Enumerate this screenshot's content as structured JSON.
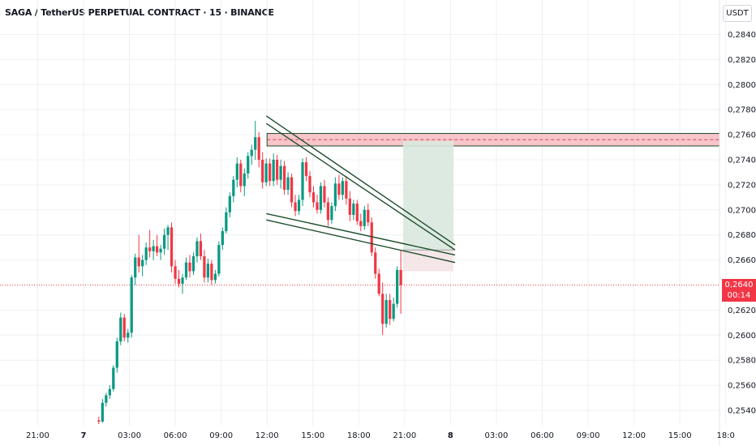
{
  "header": {
    "title": "SAGA / TetherUS PERPETUAL CONTRACT · 15 · BINANCE",
    "currency": "USDT"
  },
  "price_label": {
    "price": "0,2640",
    "countdown": "00:14"
  },
  "colors": {
    "up": "#089981",
    "down": "#f23645",
    "grid": "#eef0f3",
    "trendline": "#1e4d2b"
  },
  "chart_data": {
    "type": "candlestick",
    "title": "SAGA / TetherUS PERPETUAL CONTRACT · 15 · BINANCE",
    "ylim": [
      0.253,
      0.2862
    ],
    "y_ticks": [
      "0,2540",
      "0,2560",
      "0,2580",
      "0,2600",
      "0,2620",
      "0,2660",
      "0,2680",
      "0,2700",
      "0,2720",
      "0,2740",
      "0,2760",
      "0,2780",
      "0,2800",
      "0,2820",
      "0,2840"
    ],
    "y_tick_values": [
      0.254,
      0.256,
      0.258,
      0.26,
      0.262,
      0.266,
      0.268,
      0.27,
      0.272,
      0.274,
      0.276,
      0.278,
      0.28,
      0.282,
      0.284
    ],
    "x_ticks": [
      {
        "label": "21:00",
        "h": -3
      },
      {
        "label": "7",
        "h": 0,
        "bold": true
      },
      {
        "label": "03:00",
        "h": 3
      },
      {
        "label": "06:00",
        "h": 6
      },
      {
        "label": "09:00",
        "h": 9
      },
      {
        "label": "12:00",
        "h": 12
      },
      {
        "label": "15:00",
        "h": 15
      },
      {
        "label": "18:00",
        "h": 18
      },
      {
        "label": "21:00",
        "h": 21
      },
      {
        "label": "8",
        "h": 24,
        "bold": true
      },
      {
        "label": "03:00",
        "h": 27
      },
      {
        "label": "06:00",
        "h": 30
      },
      {
        "label": "09:00",
        "h": 33
      },
      {
        "label": "12:00",
        "h": 36
      },
      {
        "label": "15:00",
        "h": 39
      },
      {
        "label": "18:0",
        "h": 42
      }
    ],
    "current_price": 0.264,
    "resistance_zone": {
      "from_h": 12,
      "to_h": 42,
      "top": 0.2761,
      "bottom": 0.2751,
      "mid": 0.2756
    },
    "target_box": {
      "from_h": 20.9,
      "to_h": 24.2,
      "top": 0.2755,
      "entry": 0.2668,
      "stop": 0.2651
    },
    "trendlines": [
      {
        "from": [
          11.95,
          0.2775
        ],
        "to": [
          24.3,
          0.2672
        ]
      },
      {
        "from": [
          11.95,
          0.2769
        ],
        "to": [
          24.3,
          0.2668
        ]
      },
      {
        "from": [
          11.95,
          0.2697
        ],
        "to": [
          24.3,
          0.2664
        ]
      },
      {
        "from": [
          11.95,
          0.2692
        ],
        "to": [
          24.3,
          0.2658
        ]
      }
    ],
    "candles": [
      [
        0.2532,
        0.2535,
        0.2529,
        0.2531
      ],
      [
        0.2531,
        0.2549,
        0.253,
        0.2546
      ],
      [
        0.2546,
        0.2554,
        0.2543,
        0.2552
      ],
      [
        0.2552,
        0.256,
        0.2549,
        0.2557
      ],
      [
        0.2557,
        0.2576,
        0.2555,
        0.2574
      ],
      [
        0.2574,
        0.2598,
        0.257,
        0.2595
      ],
      [
        0.2595,
        0.2618,
        0.2592,
        0.2614
      ],
      [
        0.2614,
        0.2617,
        0.2595,
        0.2598
      ],
      [
        0.2598,
        0.2605,
        0.2594,
        0.2602
      ],
      [
        0.2602,
        0.2648,
        0.2598,
        0.2646
      ],
      [
        0.2646,
        0.2665,
        0.264,
        0.2662
      ],
      [
        0.2662,
        0.268,
        0.265,
        0.2655
      ],
      [
        0.2655,
        0.2664,
        0.2647,
        0.266
      ],
      [
        0.266,
        0.2674,
        0.2656,
        0.267
      ],
      [
        0.267,
        0.2684,
        0.2662,
        0.2667
      ],
      [
        0.2667,
        0.2676,
        0.266,
        0.2671
      ],
      [
        0.2671,
        0.268,
        0.2663,
        0.2666
      ],
      [
        0.2666,
        0.2672,
        0.266,
        0.2669
      ],
      [
        0.2669,
        0.2685,
        0.2664,
        0.268
      ],
      [
        0.268,
        0.2688,
        0.2668,
        0.2686
      ],
      [
        0.2686,
        0.269,
        0.265,
        0.2655
      ],
      [
        0.2655,
        0.266,
        0.2641,
        0.2645
      ],
      [
        0.2645,
        0.2652,
        0.2638,
        0.2641
      ],
      [
        0.2641,
        0.2649,
        0.2633,
        0.2646
      ],
      [
        0.2646,
        0.2662,
        0.2644,
        0.2658
      ],
      [
        0.2658,
        0.2664,
        0.2646,
        0.2651
      ],
      [
        0.2651,
        0.2666,
        0.2648,
        0.2663
      ],
      [
        0.2663,
        0.2678,
        0.2658,
        0.2675
      ],
      [
        0.2675,
        0.2681,
        0.266,
        0.2663
      ],
      [
        0.2663,
        0.2668,
        0.2642,
        0.2646
      ],
      [
        0.2646,
        0.2661,
        0.2642,
        0.2657
      ],
      [
        0.2657,
        0.266,
        0.264,
        0.2644
      ],
      [
        0.2644,
        0.2652,
        0.2641,
        0.2649
      ],
      [
        0.2649,
        0.2675,
        0.2647,
        0.2672
      ],
      [
        0.2672,
        0.2686,
        0.2668,
        0.2683
      ],
      [
        0.2683,
        0.2702,
        0.2681,
        0.2698
      ],
      [
        0.2698,
        0.2714,
        0.2694,
        0.2711
      ],
      [
        0.2711,
        0.2727,
        0.2706,
        0.2724
      ],
      [
        0.2724,
        0.2742,
        0.2718,
        0.2737
      ],
      [
        0.2737,
        0.274,
        0.2714,
        0.2719
      ],
      [
        0.2719,
        0.2733,
        0.2711,
        0.2729
      ],
      [
        0.2729,
        0.2746,
        0.2725,
        0.2743
      ],
      [
        0.2743,
        0.2752,
        0.2736,
        0.2748
      ],
      [
        0.2748,
        0.2771,
        0.274,
        0.2758
      ],
      [
        0.2758,
        0.2762,
        0.2734,
        0.274
      ],
      [
        0.274,
        0.2746,
        0.2717,
        0.2722
      ],
      [
        0.2722,
        0.2741,
        0.2719,
        0.2737
      ],
      [
        0.2737,
        0.2741,
        0.2719,
        0.2723
      ],
      [
        0.2723,
        0.2745,
        0.2719,
        0.274
      ],
      [
        0.274,
        0.2744,
        0.272,
        0.2724
      ],
      [
        0.2724,
        0.274,
        0.2717,
        0.2735
      ],
      [
        0.2735,
        0.2739,
        0.2712,
        0.2716
      ],
      [
        0.2716,
        0.273,
        0.2712,
        0.2726
      ],
      [
        0.2726,
        0.2729,
        0.2702,
        0.2706
      ],
      [
        0.2706,
        0.2712,
        0.2695,
        0.2699
      ],
      [
        0.2699,
        0.2712,
        0.2696,
        0.2708
      ],
      [
        0.2708,
        0.2741,
        0.2703,
        0.2738
      ],
      [
        0.2738,
        0.2742,
        0.2723,
        0.2727
      ],
      [
        0.2727,
        0.2731,
        0.271,
        0.2714
      ],
      [
        0.2714,
        0.2719,
        0.2702,
        0.2706
      ],
      [
        0.2706,
        0.2712,
        0.2697,
        0.27
      ],
      [
        0.27,
        0.2722,
        0.2697,
        0.2719
      ],
      [
        0.2719,
        0.2724,
        0.2702,
        0.2706
      ],
      [
        0.2706,
        0.271,
        0.2687,
        0.2692
      ],
      [
        0.2692,
        0.2706,
        0.2689,
        0.2703
      ],
      [
        0.2703,
        0.2726,
        0.2699,
        0.2721
      ],
      [
        0.2721,
        0.2728,
        0.2708,
        0.2712
      ],
      [
        0.2712,
        0.2726,
        0.2708,
        0.2723
      ],
      [
        0.2723,
        0.2727,
        0.2704,
        0.2709
      ],
      [
        0.2709,
        0.2715,
        0.2691,
        0.2696
      ],
      [
        0.2696,
        0.2708,
        0.2692,
        0.2705
      ],
      [
        0.2705,
        0.2708,
        0.2688,
        0.2691
      ],
      [
        0.2691,
        0.2697,
        0.2683,
        0.2687
      ],
      [
        0.2687,
        0.2703,
        0.2684,
        0.27
      ],
      [
        0.27,
        0.2705,
        0.2687,
        0.269
      ],
      [
        0.269,
        0.2694,
        0.2663,
        0.2666
      ],
      [
        0.2666,
        0.267,
        0.2645,
        0.2649
      ],
      [
        0.2649,
        0.2653,
        0.2631,
        0.2633
      ],
      [
        0.2633,
        0.2642,
        0.26,
        0.2609
      ],
      [
        0.2609,
        0.2633,
        0.2606,
        0.2628
      ],
      [
        0.2628,
        0.2633,
        0.2608,
        0.2613
      ],
      [
        0.2613,
        0.263,
        0.2611,
        0.2625
      ],
      [
        0.2625,
        0.2655,
        0.2622,
        0.2652
      ],
      [
        0.2652,
        0.2668,
        0.2617,
        0.264
      ]
    ]
  }
}
